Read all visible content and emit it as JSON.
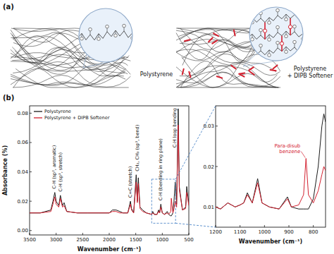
{
  "diagram": {
    "panel_label": "(a)",
    "left_label": "Polystyrene",
    "right_label": [
      "Polystyrene",
      "+ DIPB Softener"
    ]
  },
  "chart_data": [
    {
      "type": "line",
      "panel_label": "(b)",
      "x_label": "Wavenumber (cm⁻¹)",
      "y_label": "Absorbance (%)",
      "x": [
        3500,
        3300,
        3100,
        3060,
        3025,
        3000,
        2950,
        2920,
        2880,
        2850,
        2800,
        2600,
        2400,
        2200,
        2000,
        1940,
        1870,
        1800,
        1740,
        1650,
        1600,
        1580,
        1540,
        1492,
        1470,
        1452,
        1420,
        1370,
        1300,
        1200,
        1180,
        1150,
        1100,
        1070,
        1050,
        1028,
        1000,
        960,
        906,
        880,
        840,
        830,
        800,
        780,
        757,
        730,
        700,
        680,
        620,
        560,
        540,
        500
      ],
      "series": [
        {
          "name": "Polystyrene",
          "color": "#1a1a1a",
          "values": [
            0.012,
            0.012,
            0.014,
            0.02,
            0.026,
            0.02,
            0.017,
            0.024,
            0.017,
            0.019,
            0.013,
            0.012,
            0.012,
            0.012,
            0.012,
            0.014,
            0.014,
            0.013,
            0.012,
            0.012,
            0.02,
            0.015,
            0.012,
            0.038,
            0.02,
            0.036,
            0.016,
            0.014,
            0.012,
            0.011,
            0.013,
            0.011,
            0.011,
            0.014,
            0.012,
            0.018,
            0.012,
            0.011,
            0.013,
            0.011,
            0.01,
            0.01,
            0.012,
            0.02,
            0.033,
            0.018,
            0.083,
            0.03,
            0.014,
            0.016,
            0.03,
            0.018
          ]
        },
        {
          "name": "Polystyrene + DIPB Softener",
          "color": "#d3202f",
          "values": [
            0.012,
            0.012,
            0.013,
            0.018,
            0.023,
            0.018,
            0.016,
            0.022,
            0.016,
            0.017,
            0.013,
            0.012,
            0.012,
            0.012,
            0.012,
            0.013,
            0.013,
            0.012,
            0.012,
            0.012,
            0.018,
            0.014,
            0.012,
            0.033,
            0.019,
            0.032,
            0.015,
            0.013,
            0.012,
            0.011,
            0.012,
            0.011,
            0.011,
            0.013,
            0.012,
            0.016,
            0.012,
            0.011,
            0.012,
            0.011,
            0.013,
            0.022,
            0.012,
            0.015,
            0.02,
            0.016,
            0.072,
            0.028,
            0.014,
            0.015,
            0.026,
            0.017
          ]
        }
      ],
      "xlim": [
        3500,
        500
      ],
      "xticks": [
        3500,
        3000,
        2500,
        2000,
        1500,
        1000,
        500
      ],
      "ylim": [
        -0.003,
        0.085
      ],
      "yticks": [
        {
          "value": 0,
          "label": "0.00"
        },
        0.02,
        0.04,
        0.06,
        0.08
      ],
      "legend": "upper left",
      "annotations": [
        {
          "text": "C-H (sp², aromatic)",
          "x": 3030
        },
        {
          "text": "C-H (sp³, stretch)",
          "x": 2920
        },
        {
          "text": "C=C (stretch)",
          "x": 1600
        },
        {
          "text": "CH₂, CH₃ (sp³, bend)",
          "x": 1470
        },
        {
          "text": "C-H (bending in ring plane)",
          "x": 1028
        },
        {
          "text": "C-H loop bending",
          "x": 700
        }
      ]
    },
    {
      "type": "line",
      "x_label": "Wavenumber (cm⁻¹)",
      "x": [
        1200,
        1180,
        1150,
        1120,
        1100,
        1085,
        1070,
        1050,
        1028,
        1010,
        980,
        940,
        906,
        890,
        860,
        840,
        830,
        820,
        800,
        780,
        765,
        757,
        750
      ],
      "series": [
        {
          "color": "#1a1a1a",
          "values": [
            0.01,
            0.0095,
            0.011,
            0.01,
            0.0105,
            0.011,
            0.0135,
            0.011,
            0.017,
            0.011,
            0.01,
            0.0095,
            0.0125,
            0.01,
            0.0095,
            0.0095,
            0.0095,
            0.0095,
            0.012,
            0.02,
            0.03,
            0.033,
            0.031
          ]
        },
        {
          "color": "#d3202f",
          "values": [
            0.01,
            0.0095,
            0.011,
            0.01,
            0.0105,
            0.011,
            0.013,
            0.011,
            0.016,
            0.011,
            0.01,
            0.0095,
            0.012,
            0.01,
            0.0105,
            0.013,
            0.022,
            0.013,
            0.011,
            0.014,
            0.018,
            0.02,
            0.019
          ]
        }
      ],
      "xlim": [
        1200,
        750
      ],
      "xticks": [
        1200,
        1100,
        1000,
        900,
        800
      ],
      "ylim": [
        0.005,
        0.035
      ],
      "yticks": [
        0.01,
        0.02,
        0.03
      ],
      "annotations": [
        {
          "lines": [
            "Para-disub",
            "benzene"
          ],
          "x": 830
        }
      ]
    }
  ]
}
